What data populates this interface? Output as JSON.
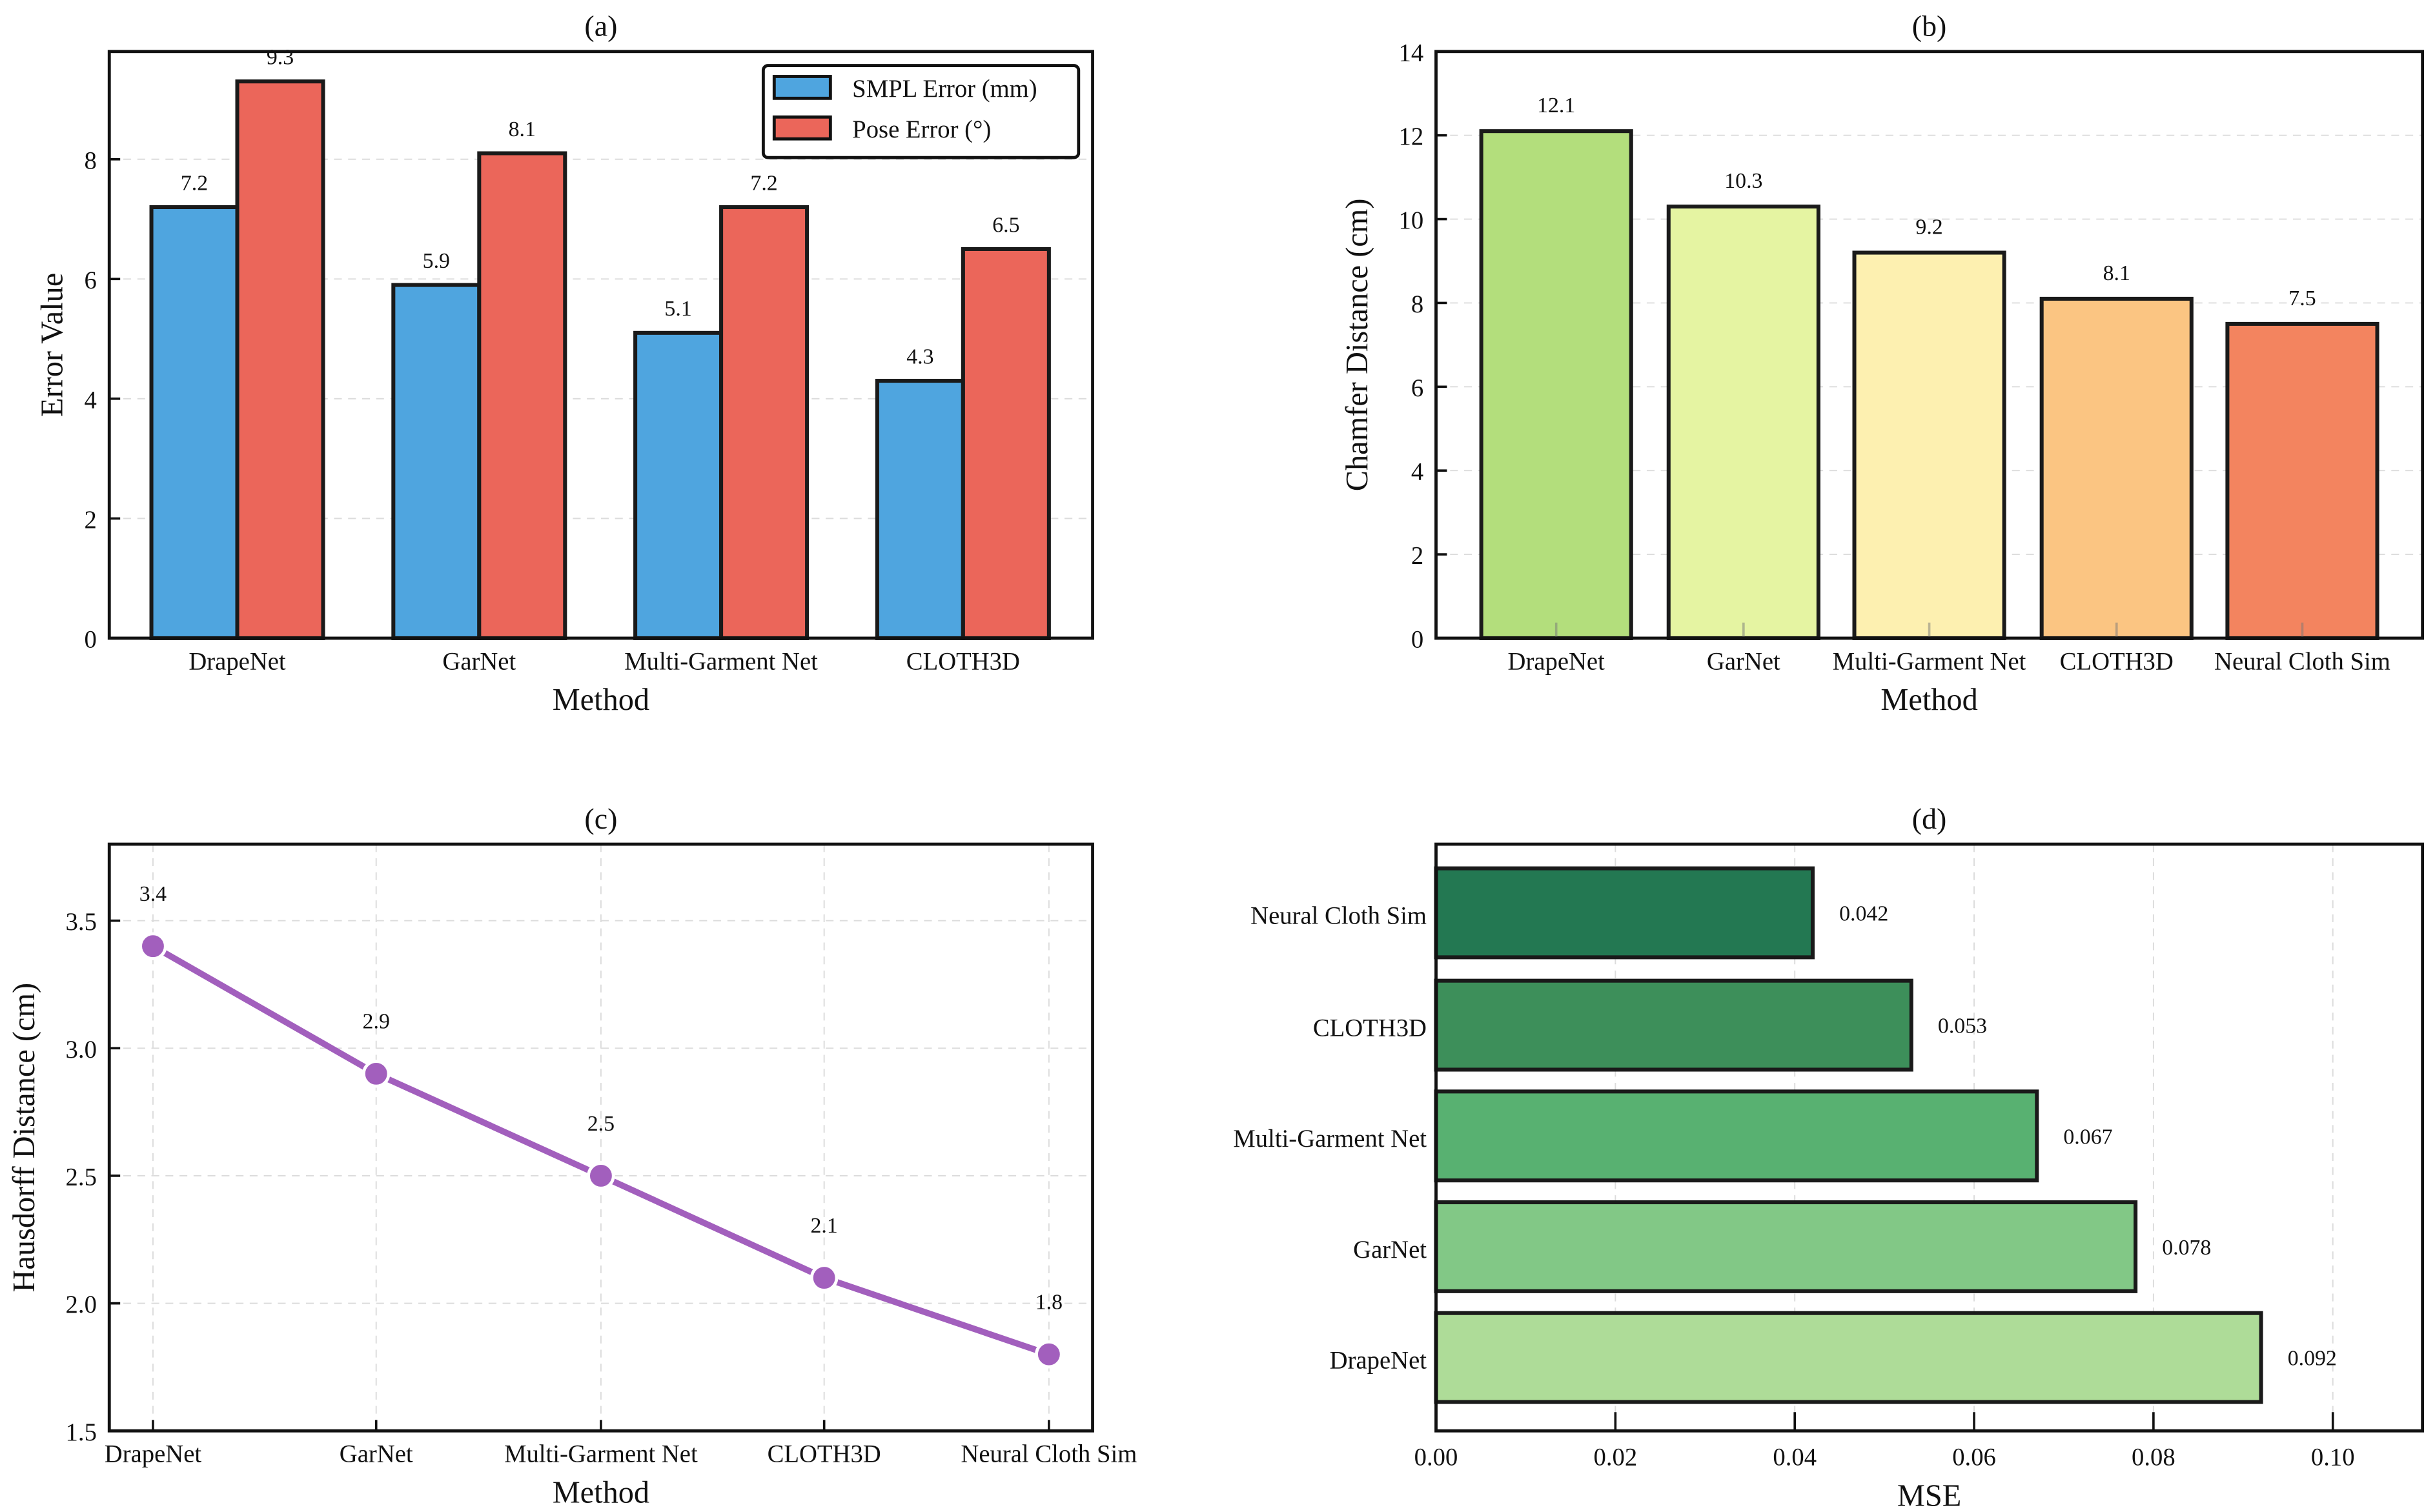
{
  "chart_data": [
    {
      "type": "bar",
      "title": "(a)",
      "xlabel": "Method",
      "ylabel": "Error Value",
      "categories": [
        "DrapeNet",
        "GarNet",
        "Multi-Garment Net",
        "CLOTH3D"
      ],
      "series": [
        {
          "name": "SMPL Error (mm)",
          "values": [
            7.2,
            5.9,
            5.1,
            4.3
          ],
          "color": "#4fa5df"
        },
        {
          "name": "Pose Error (°)",
          "values": [
            9.3,
            8.1,
            7.2,
            6.5
          ],
          "color": "#eb665a"
        }
      ],
      "value_labels": [
        [
          "7.2",
          "5.9",
          "5.1",
          "4.3"
        ],
        [
          "9.3",
          "8.1",
          "7.2",
          "6.5"
        ]
      ],
      "ylim": [
        0,
        9.8
      ],
      "yticks": [
        "0",
        "2",
        "4",
        "6",
        "8"
      ],
      "ytick_values": [
        0,
        2,
        4,
        6,
        8
      ],
      "grid": true,
      "legend": "top-right"
    },
    {
      "type": "bar",
      "title": "(b)",
      "xlabel": "Method",
      "ylabel": "Chamfer Distance (cm)",
      "categories": [
        "DrapeNet",
        "GarNet",
        "Multi-Garment Net",
        "CLOTH3D",
        "Neural Cloth Sim"
      ],
      "values": [
        12.1,
        10.3,
        9.2,
        8.1,
        7.5
      ],
      "value_labels": [
        "12.1",
        "10.3",
        "9.2",
        "8.1",
        "7.5"
      ],
      "colors": [
        "#b3de7c",
        "#e5f4a2",
        "#fdf0b0",
        "#fbc582",
        "#f3845f"
      ],
      "ylim": [
        0,
        14
      ],
      "yticks": [
        "0",
        "2",
        "4",
        "6",
        "8",
        "10",
        "12",
        "14"
      ],
      "ytick_values": [
        0,
        2,
        4,
        6,
        8,
        10,
        12,
        14
      ],
      "grid": true
    },
    {
      "type": "line",
      "title": "(c)",
      "xlabel": "Method",
      "ylabel": "Hausdorff Distance (cm)",
      "categories": [
        "DrapeNet",
        "GarNet",
        "Multi-Garment Net",
        "CLOTH3D",
        "Neural Cloth Sim"
      ],
      "values": [
        3.4,
        2.9,
        2.5,
        2.1,
        1.8
      ],
      "value_labels": [
        "3.4",
        "2.9",
        "2.5",
        "2.1",
        "1.8"
      ],
      "color": "#a25fbd",
      "ylim": [
        1.5,
        3.8
      ],
      "yticks": [
        "1.5",
        "2.0",
        "2.5",
        "3.0",
        "3.5"
      ],
      "ytick_values": [
        1.5,
        2.0,
        2.5,
        3.0,
        3.5
      ],
      "grid": true
    },
    {
      "type": "bar",
      "orientation": "horizontal",
      "title": "(d)",
      "xlabel": "MSE",
      "ylabel": "",
      "categories": [
        "DrapeNet",
        "GarNet",
        "Multi-Garment Net",
        "CLOTH3D",
        "Neural Cloth Sim"
      ],
      "values": [
        0.092,
        0.078,
        0.067,
        0.053,
        0.042
      ],
      "value_labels": [
        "0.092",
        "0.078",
        "0.067",
        "0.053",
        "0.042"
      ],
      "colors": [
        "#aedc98",
        "#82c886",
        "#58b171",
        "#3d8f5a",
        "#237852"
      ],
      "xlim": [
        0,
        0.11
      ],
      "xticks": [
        "0.00",
        "0.02",
        "0.04",
        "0.06",
        "0.08",
        "0.10"
      ],
      "xtick_values": [
        0,
        0.02,
        0.04,
        0.06,
        0.08,
        0.1
      ],
      "grid": true
    }
  ]
}
